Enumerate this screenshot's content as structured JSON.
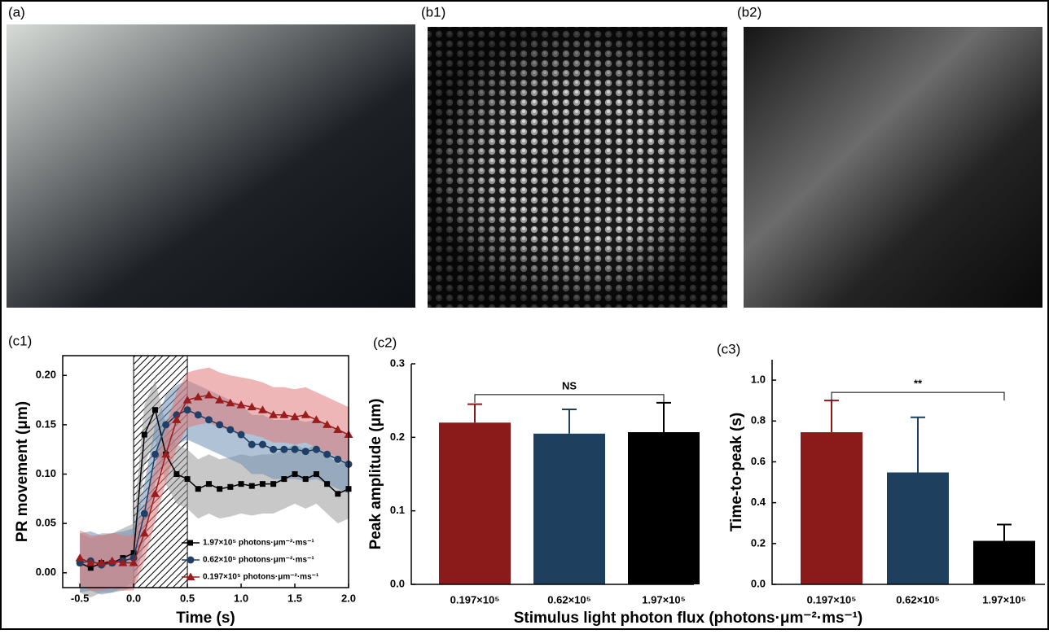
{
  "photo_panels": [
    {
      "label": "(a)"
    },
    {
      "label": "(b1)"
    },
    {
      "label": "(b2)"
    }
  ],
  "shared_xlabel": "Stimulus light photon flux (photons·μm⁻²·ms⁻¹)",
  "chart_data": [
    {
      "type": "line",
      "panel": "(c1)",
      "xlabel": "Time (s)",
      "ylabel": "PR movement (μm)",
      "xlim": [
        -0.66,
        2.0
      ],
      "ylim": [
        -0.015,
        0.22
      ],
      "xticks": [
        -0.5,
        {
          "value": 0,
          "label": "0.0"
        },
        0.5,
        {
          "value": 1,
          "label": "1.0"
        },
        1.5,
        {
          "value": 2,
          "label": "2.0"
        }
      ],
      "yticks": [
        {
          "value": 0,
          "label": "0.00"
        },
        {
          "value": 0.05,
          "label": "0.05"
        },
        {
          "value": 0.1,
          "label": "0.10"
        },
        {
          "value": 0.15,
          "label": "0.15"
        },
        {
          "value": 0.2,
          "label": "0.20"
        }
      ],
      "stimulus": [
        0,
        0.5
      ],
      "legend": "lower right",
      "x": [
        -0.5,
        -0.4,
        -0.3,
        -0.2,
        -0.1,
        0,
        0.1,
        0.2,
        0.3,
        0.4,
        0.5,
        0.6,
        0.7,
        0.8,
        0.9,
        1.0,
        1.1,
        1.2,
        1.3,
        1.4,
        1.5,
        1.6,
        1.7,
        1.8,
        1.9,
        2.0
      ],
      "series": [
        {
          "name": "1.97×10⁵ photons·μm⁻²·ms⁻¹",
          "color": "#000000",
          "band_color": "#9a9a9a",
          "marker": "square",
          "error": 0.03,
          "values": [
            0.01,
            0.005,
            0.01,
            0.01,
            0.015,
            0.02,
            0.14,
            0.165,
            0.12,
            0.1,
            0.095,
            0.085,
            0.09,
            0.085,
            0.087,
            0.09,
            0.088,
            0.09,
            0.09,
            0.095,
            0.1,
            0.095,
            0.1,
            0.09,
            0.08,
            0.085
          ]
        },
        {
          "name": "0.62×10⁵ photons·μm⁻²·ms⁻¹",
          "color": "#1f3f66",
          "band_color": "#6f8fb5",
          "marker": "circle",
          "error": 0.03,
          "values": [
            0.01,
            0.012,
            0.008,
            0.01,
            0.012,
            0.015,
            0.06,
            0.12,
            0.15,
            0.16,
            0.165,
            0.16,
            0.155,
            0.15,
            0.145,
            0.14,
            0.13,
            0.13,
            0.125,
            0.125,
            0.125,
            0.123,
            0.125,
            0.12,
            0.115,
            0.11
          ]
        },
        {
          "name": "0.197×10⁵ photons·μm⁻²·ms⁻¹",
          "color": "#9a1c1c",
          "band_color": "#e07a7a",
          "marker": "triangle",
          "error": 0.028,
          "values": [
            0.015,
            0.01,
            0.01,
            0.012,
            0.01,
            0.01,
            0.04,
            0.08,
            0.12,
            0.155,
            0.175,
            0.178,
            0.18,
            0.175,
            0.172,
            0.17,
            0.168,
            0.165,
            0.16,
            0.16,
            0.158,
            0.16,
            0.155,
            0.15,
            0.145,
            0.14
          ]
        }
      ]
    },
    {
      "type": "bar",
      "panel": "(c2)",
      "ylabel": "Peak amplitude (μm)",
      "ylim": [
        0,
        0.3
      ],
      "yticks": [
        {
          "value": 0,
          "label": "0.0"
        },
        0.1,
        0.2,
        0.3
      ],
      "categories": [
        "0.197×10⁵",
        "0.62×10⁵",
        "1.97×10⁵"
      ],
      "values": [
        0.22,
        0.205,
        0.207
      ],
      "errors": [
        0.025,
        0.033,
        0.04
      ],
      "colors": [
        "#8b1a1a",
        "#1f3f5f",
        "#000000"
      ],
      "annotation": {
        "text": "NS",
        "from": 0,
        "to": 2
      }
    },
    {
      "type": "bar",
      "panel": "(c3)",
      "ylabel": "Time-to-peak (s)",
      "ylim": [
        0,
        1.1
      ],
      "yticks": [
        {
          "value": 0,
          "label": "0.0"
        },
        0.2,
        0.4,
        0.6,
        0.8,
        {
          "value": 1,
          "label": "1.0"
        }
      ],
      "categories": [
        "0.197×10⁵",
        "0.62×10⁵",
        "1.97×10⁵"
      ],
      "values": [
        0.745,
        0.548,
        0.213
      ],
      "errors": [
        0.155,
        0.27,
        0.08
      ],
      "colors": [
        "#8b1a1a",
        "#1f3f5f",
        "#000000"
      ],
      "annotation": {
        "text": "**",
        "from": 0,
        "to": 2
      }
    }
  ]
}
